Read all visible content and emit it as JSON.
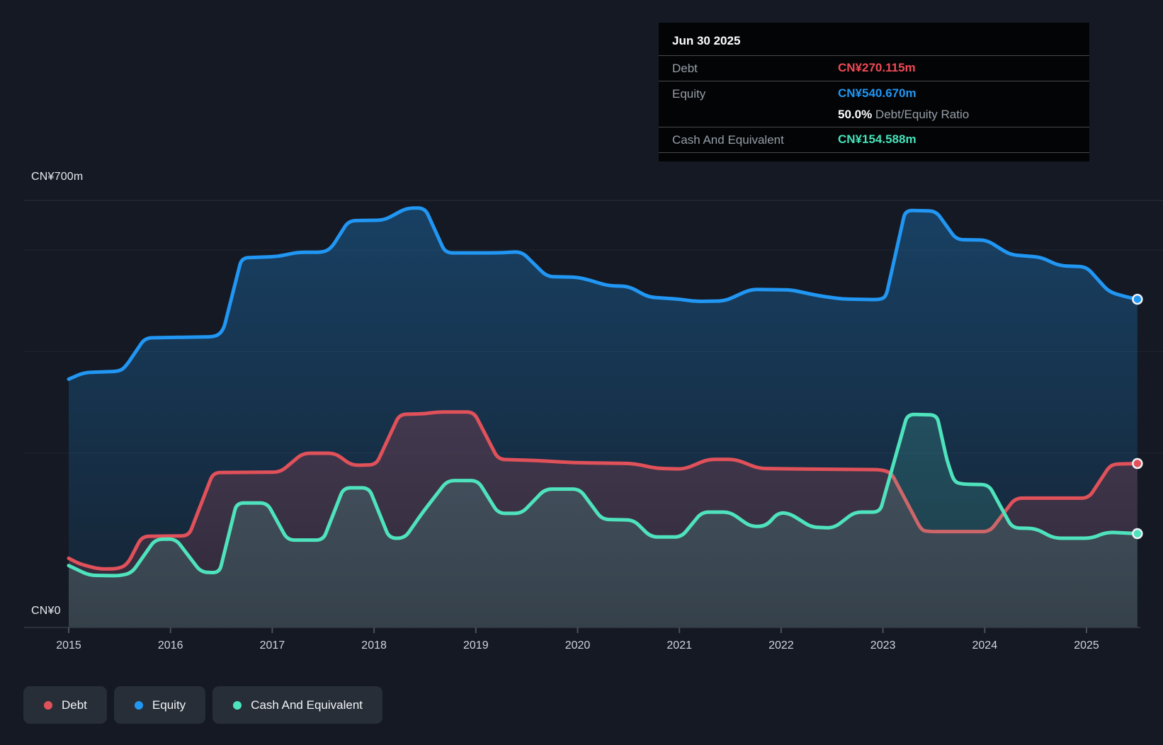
{
  "y_axis": {
    "top_label": "CN¥700m",
    "bottom_label": "CN¥0"
  },
  "x_axis": {
    "years": [
      "2015",
      "2016",
      "2017",
      "2018",
      "2019",
      "2020",
      "2021",
      "2022",
      "2023",
      "2024",
      "2025"
    ]
  },
  "tooltip": {
    "date": "Jun 30 2025",
    "debt_label": "Debt",
    "debt_value": "CN¥270.115m",
    "equity_label": "Equity",
    "equity_value": "CN¥540.670m",
    "ratio_value": "50.0%",
    "ratio_label": " Debt/Equity Ratio",
    "cash_label": "Cash And Equivalent",
    "cash_value": "CN¥154.588m"
  },
  "legend": [
    {
      "label": "Debt",
      "color": "#e0515a"
    },
    {
      "label": "Equity",
      "color": "#2196f3"
    },
    {
      "label": "Cash And Equivalent",
      "color": "#4fe3bd"
    }
  ],
  "colors": {
    "background": "#141923",
    "debt": "#e0515a",
    "equity": "#2196f3",
    "cash": "#4fe3bd",
    "axis": "#39404a",
    "gridline": "rgba(255,255,255,0.07)"
  },
  "chart_data": {
    "type": "area",
    "unit": "CN¥ millions",
    "x_range": [
      2015,
      2025.5
    ],
    "ylim": [
      0,
      700
    ],
    "grid": "horizontal-faint",
    "legend_position": "bottom-left",
    "last_point_date": "Jun 30 2025",
    "series": [
      {
        "name": "Equity",
        "color": "#2196f3",
        "points": [
          [
            2015.0,
            409
          ],
          [
            2015.15,
            420
          ],
          [
            2015.5,
            422
          ],
          [
            2015.56,
            430
          ],
          [
            2015.75,
            477
          ],
          [
            2016.45,
            479
          ],
          [
            2016.52,
            490
          ],
          [
            2016.7,
            609
          ],
          [
            2017.05,
            611
          ],
          [
            2017.25,
            618
          ],
          [
            2017.5,
            618
          ],
          [
            2017.58,
            625
          ],
          [
            2017.75,
            670
          ],
          [
            2018.1,
            671
          ],
          [
            2018.32,
            691
          ],
          [
            2018.5,
            691
          ],
          [
            2018.7,
            617
          ],
          [
            2019.2,
            617
          ],
          [
            2019.45,
            619
          ],
          [
            2019.7,
            578
          ],
          [
            2020.0,
            577
          ],
          [
            2020.12,
            572
          ],
          [
            2020.3,
            563
          ],
          [
            2020.5,
            562
          ],
          [
            2020.7,
            544
          ],
          [
            2021.0,
            541
          ],
          [
            2021.15,
            537
          ],
          [
            2021.45,
            538
          ],
          [
            2021.7,
            557
          ],
          [
            2022.1,
            556
          ],
          [
            2022.35,
            547
          ],
          [
            2022.6,
            541
          ],
          [
            2022.97,
            540
          ],
          [
            2023.03,
            545
          ],
          [
            2023.22,
            687
          ],
          [
            2023.52,
            686
          ],
          [
            2023.72,
            639
          ],
          [
            2024.02,
            638
          ],
          [
            2024.25,
            614
          ],
          [
            2024.55,
            610
          ],
          [
            2024.73,
            596
          ],
          [
            2025.0,
            594
          ],
          [
            2025.22,
            553
          ],
          [
            2025.38,
            545
          ],
          [
            2025.5,
            540.67
          ]
        ]
      },
      {
        "name": "Debt",
        "color": "#e0515a",
        "points": [
          [
            2015.0,
            114
          ],
          [
            2015.1,
            105
          ],
          [
            2015.3,
            96
          ],
          [
            2015.5,
            97
          ],
          [
            2015.58,
            105
          ],
          [
            2015.72,
            150
          ],
          [
            2016.18,
            151
          ],
          [
            2016.42,
            255
          ],
          [
            2017.08,
            256
          ],
          [
            2017.3,
            287
          ],
          [
            2017.62,
            287
          ],
          [
            2017.78,
            267
          ],
          [
            2018.02,
            268
          ],
          [
            2018.25,
            351
          ],
          [
            2018.5,
            352
          ],
          [
            2018.62,
            355
          ],
          [
            2018.98,
            355
          ],
          [
            2019.22,
            277
          ],
          [
            2019.6,
            275
          ],
          [
            2019.9,
            272
          ],
          [
            2020.1,
            271
          ],
          [
            2020.55,
            270
          ],
          [
            2020.78,
            262
          ],
          [
            2021.05,
            261
          ],
          [
            2021.28,
            277
          ],
          [
            2021.55,
            277
          ],
          [
            2021.78,
            262
          ],
          [
            2022.2,
            261
          ],
          [
            2022.98,
            260
          ],
          [
            2023.08,
            255
          ],
          [
            2023.38,
            160
          ],
          [
            2023.45,
            158
          ],
          [
            2024.05,
            158
          ],
          [
            2024.3,
            213
          ],
          [
            2025.02,
            213
          ],
          [
            2025.24,
            269
          ],
          [
            2025.5,
            270.115
          ]
        ]
      },
      {
        "name": "Cash And Equivalent",
        "color": "#4fe3bd",
        "points": [
          [
            2015.0,
            102
          ],
          [
            2015.2,
            86
          ],
          [
            2015.5,
            85
          ],
          [
            2015.62,
            90
          ],
          [
            2015.85,
            145
          ],
          [
            2016.05,
            146
          ],
          [
            2016.3,
            91
          ],
          [
            2016.48,
            90
          ],
          [
            2016.65,
            205
          ],
          [
            2016.95,
            205
          ],
          [
            2017.15,
            144
          ],
          [
            2017.5,
            144
          ],
          [
            2017.7,
            230
          ],
          [
            2017.95,
            230
          ],
          [
            2018.15,
            147
          ],
          [
            2018.3,
            147
          ],
          [
            2018.48,
            190
          ],
          [
            2018.72,
            242
          ],
          [
            2019.02,
            242
          ],
          [
            2019.22,
            188
          ],
          [
            2019.45,
            188
          ],
          [
            2019.68,
            228
          ],
          [
            2020.02,
            228
          ],
          [
            2020.24,
            178
          ],
          [
            2020.55,
            177
          ],
          [
            2020.72,
            149
          ],
          [
            2021.02,
            149
          ],
          [
            2021.22,
            190
          ],
          [
            2021.5,
            190
          ],
          [
            2021.7,
            166
          ],
          [
            2021.85,
            167
          ],
          [
            2021.97,
            189
          ],
          [
            2022.08,
            188
          ],
          [
            2022.3,
            165
          ],
          [
            2022.52,
            164
          ],
          [
            2022.72,
            190
          ],
          [
            2022.97,
            190
          ],
          [
            2023.24,
            351
          ],
          [
            2023.53,
            350
          ],
          [
            2023.63,
            275
          ],
          [
            2023.7,
            240
          ],
          [
            2023.78,
            236
          ],
          [
            2024.04,
            235
          ],
          [
            2024.27,
            164
          ],
          [
            2024.5,
            163
          ],
          [
            2024.68,
            147
          ],
          [
            2025.05,
            147
          ],
          [
            2025.2,
            157
          ],
          [
            2025.5,
            154.588
          ]
        ]
      }
    ]
  }
}
